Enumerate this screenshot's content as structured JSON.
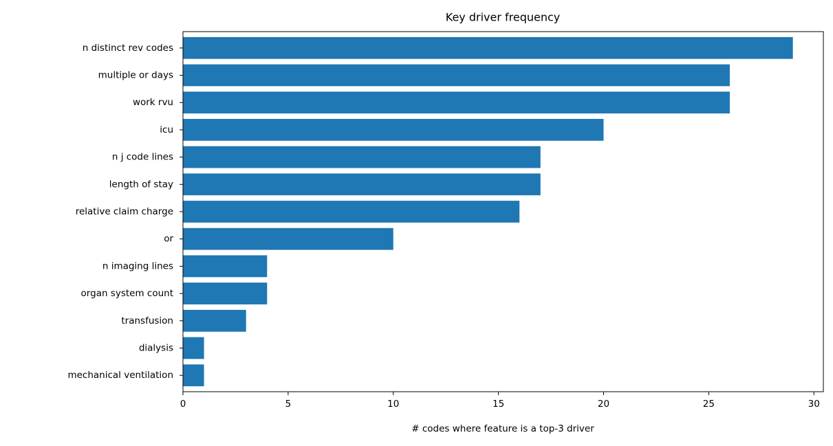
{
  "chart_data": {
    "type": "barh",
    "title": "Key driver frequency",
    "xlabel": "# codes where feature is a top-3 driver",
    "categories": [
      "n distinct rev codes",
      "multiple or days",
      "work rvu",
      "icu",
      "n j code lines",
      "length of stay",
      "relative claim charge",
      "or",
      "n imaging lines",
      "organ system count",
      "transfusion",
      "dialysis",
      "mechanical ventilation"
    ],
    "values": [
      29,
      26,
      26,
      20,
      17,
      17,
      16,
      10,
      4,
      4,
      3,
      1,
      1
    ],
    "color": "#1f77b4",
    "xlim": [
      0,
      30.45
    ],
    "xticks": [
      0,
      5,
      10,
      15,
      20,
      25,
      30
    ],
    "grid": false
  }
}
